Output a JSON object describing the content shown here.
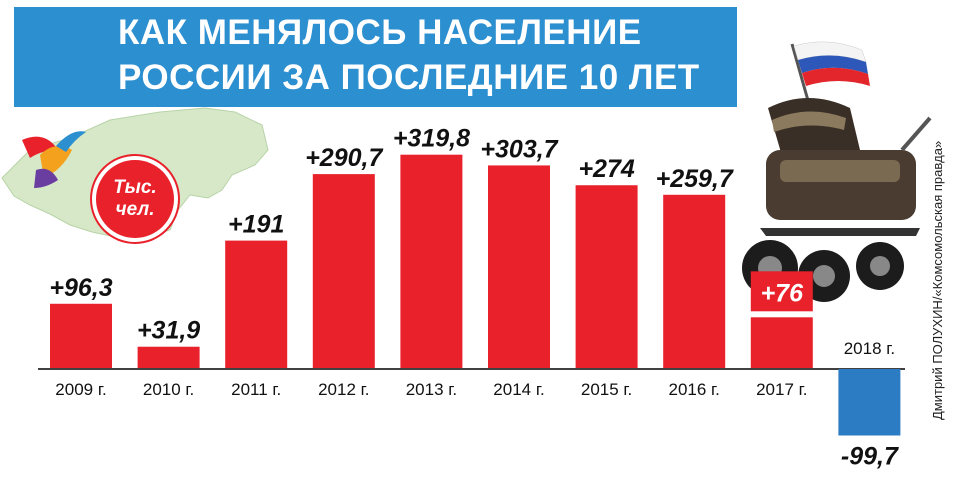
{
  "title": {
    "line1": "КАК МЕНЯЛОСЬ НАСЕЛЕНИЕ",
    "line2": "РОССИИ ЗА ПОСЛЕДНИЕ 10 ЛЕТ"
  },
  "unit": {
    "line1": "Тыс.",
    "line2": "чел."
  },
  "credit": "Дмитрий ПОЛУХИН/«Комсомольская правда»",
  "colors": {
    "banner": "#2c8fd0",
    "positive": "#e8212b",
    "negative": "#2c7cc4",
    "accent_label_bg": "#e8212b"
  },
  "chart_data": {
    "type": "bar",
    "title": "КАК МЕНЯЛОСЬ НАСЕЛЕНИЕ РОССИИ ЗА ПОСЛЕДНИЕ 10 ЛЕТ",
    "ylabel": "Тыс. чел.",
    "categories": [
      "2009 г.",
      "2010 г.",
      "2011 г.",
      "2012 г.",
      "2013 г.",
      "2014 г.",
      "2015 г.",
      "2016 г.",
      "2017 г.",
      "2018 г."
    ],
    "values": [
      96.3,
      31.9,
      191,
      290.7,
      319.8,
      303.7,
      274,
      259.7,
      76,
      -99.7
    ],
    "labels": [
      "+96,3",
      "+31,9",
      "+191",
      "+290,7",
      "+319,8",
      "+303,7",
      "+274",
      "+259,7",
      "+76",
      "-99,7"
    ],
    "ylim": [
      -110,
      330
    ],
    "grid": false,
    "legend": "none"
  }
}
